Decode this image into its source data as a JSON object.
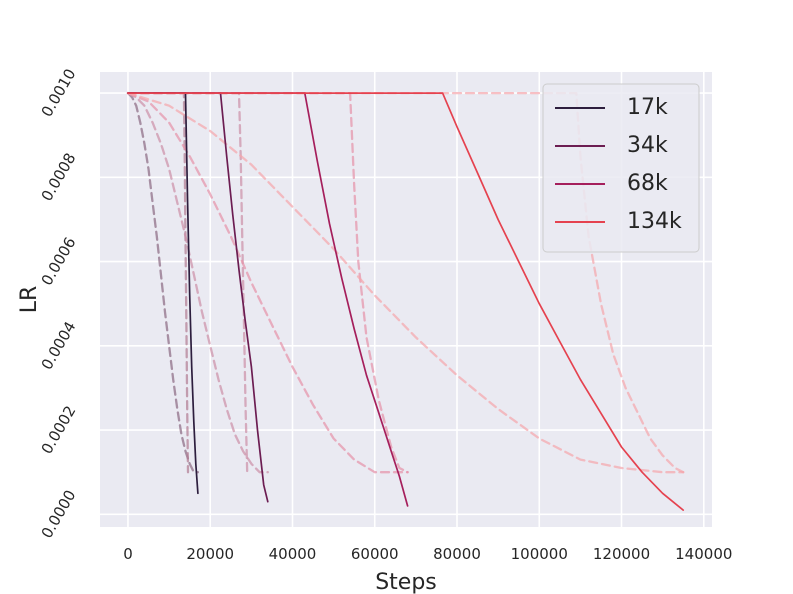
{
  "chart_data": {
    "type": "line",
    "xlabel": "Steps",
    "ylabel": "LR",
    "xlim": [
      -6800,
      142000
    ],
    "ylim": [
      -3e-05,
      0.00105
    ],
    "xticks": [
      {
        "value": 0,
        "label": "0"
      },
      {
        "value": 20000,
        "label": "20000"
      },
      {
        "value": 40000,
        "label": "40000"
      },
      {
        "value": 60000,
        "label": "60000"
      },
      {
        "value": 80000,
        "label": "80000"
      },
      {
        "value": 100000,
        "label": "100000"
      },
      {
        "value": 120000,
        "label": "120000"
      },
      {
        "value": 140000,
        "label": "140000"
      }
    ],
    "yticks": [
      {
        "value": 0.0,
        "label": "0.0000"
      },
      {
        "value": 0.0002,
        "label": "0.0002"
      },
      {
        "value": 0.0004,
        "label": "0.0004"
      },
      {
        "value": 0.0006,
        "label": "0.0006"
      },
      {
        "value": 0.0008,
        "label": "0.0008"
      },
      {
        "value": 0.001,
        "label": "0.0010"
      }
    ],
    "grid": true,
    "legend_position": "top-right",
    "background": "#eaeaf2",
    "series": [
      {
        "name": "17k",
        "style": "solid",
        "color": "#2d1e3e",
        "x": [
          0,
          14000,
          14500,
          15000,
          15500,
          16000,
          16500,
          17000
        ],
        "y": [
          0.001,
          0.001,
          0.00074,
          0.00052,
          0.00035,
          0.00022,
          0.00012,
          5e-05
        ]
      },
      {
        "name": "34k",
        "style": "solid",
        "color": "#6c1d52",
        "x": [
          0,
          22500,
          24000,
          25500,
          27000,
          28500,
          30000,
          31500,
          33000,
          34000
        ],
        "y": [
          0.001,
          0.001,
          0.00085,
          0.00071,
          0.00058,
          0.00046,
          0.00035,
          0.0002,
          7e-05,
          3e-05
        ]
      },
      {
        "name": "68k",
        "style": "solid",
        "color": "#a51f5c",
        "x": [
          0,
          43000,
          46000,
          49000,
          52000,
          55000,
          58000,
          61000,
          64000,
          66000,
          68000
        ],
        "y": [
          0.001,
          0.001,
          0.00084,
          0.00069,
          0.00056,
          0.00044,
          0.00033,
          0.00024,
          0.00015,
          9e-05,
          2e-05
        ]
      },
      {
        "name": "134k",
        "style": "solid",
        "color": "#e5424f",
        "x": [
          0,
          76500,
          80000,
          85000,
          90000,
          95000,
          100000,
          105000,
          110000,
          115000,
          120000,
          125000,
          130000,
          135000
        ],
        "y": [
          0.001,
          0.001,
          0.00092,
          0.00081,
          0.0007,
          0.0006,
          0.0005,
          0.00041,
          0.00032,
          0.00024,
          0.00016,
          0.0001,
          5e-05,
          1e-05
        ]
      },
      {
        "style": "dashed",
        "color": "#8a6882",
        "x": [
          0,
          1000,
          2000,
          3000,
          4000,
          5000,
          6000,
          7000,
          8000,
          9000,
          10000,
          11000,
          12000,
          13000,
          14000,
          15000,
          16000,
          17000
        ],
        "y": [
          0.001,
          0.00099,
          0.00097,
          0.00093,
          0.00088,
          0.00082,
          0.00074,
          0.00066,
          0.00057,
          0.00048,
          0.0004,
          0.00032,
          0.00025,
          0.00019,
          0.00015,
          0.00012,
          0.0001,
          0.0001
        ]
      },
      {
        "style": "dashed",
        "color": "#b07a92",
        "x": [
          0,
          13600,
          13800,
          14000,
          14200,
          14400,
          14600
        ],
        "y": [
          0.001,
          0.001,
          0.00085,
          0.00065,
          0.00045,
          0.00025,
          0.0001
        ]
      },
      {
        "style": "dashed",
        "color": "#cc8ea6",
        "x": [
          0,
          2000,
          4000,
          6000,
          8000,
          10000,
          12000,
          14000,
          16000,
          18000,
          20000,
          22000,
          24000,
          26000,
          28000,
          30000,
          32000,
          34000
        ],
        "y": [
          0.001,
          0.00099,
          0.00097,
          0.00093,
          0.00088,
          0.00082,
          0.00074,
          0.00066,
          0.00057,
          0.00048,
          0.0004,
          0.00032,
          0.00025,
          0.00019,
          0.00015,
          0.00012,
          0.0001,
          0.0001
        ]
      },
      {
        "style": "dashed",
        "color": "#cc8ea6",
        "x": [
          0,
          27000,
          27400,
          27800,
          28200,
          28600,
          29000
        ],
        "y": [
          0.001,
          0.001,
          0.00085,
          0.00065,
          0.00045,
          0.00025,
          0.0001
        ]
      },
      {
        "style": "dashed",
        "color": "#e691a8",
        "x": [
          0,
          5000,
          10000,
          15000,
          20000,
          25000,
          30000,
          35000,
          40000,
          45000,
          50000,
          55000,
          60000,
          65000,
          68000
        ],
        "y": [
          0.001,
          0.00098,
          0.00093,
          0.00085,
          0.00076,
          0.00066,
          0.00055,
          0.00045,
          0.00035,
          0.00026,
          0.00018,
          0.00013,
          0.0001,
          0.0001,
          0.0001
        ]
      },
      {
        "style": "dashed",
        "color": "#e691a8",
        "x": [
          0,
          54000,
          55000,
          56000,
          58000,
          61000,
          64000,
          66000,
          68000
        ],
        "y": [
          0.001,
          0.001,
          0.00078,
          0.0006,
          0.00042,
          0.00027,
          0.00016,
          0.00011,
          0.0001
        ]
      },
      {
        "style": "dashed",
        "color": "#f5a5ab",
        "x": [
          0,
          10000,
          20000,
          30000,
          40000,
          50000,
          60000,
          70000,
          80000,
          90000,
          100000,
          110000,
          120000,
          130000,
          135000
        ],
        "y": [
          0.001,
          0.00097,
          0.00091,
          0.00083,
          0.00073,
          0.00063,
          0.00052,
          0.00042,
          0.00033,
          0.00025,
          0.00018,
          0.00013,
          0.00011,
          0.0001,
          0.0001
        ]
      },
      {
        "style": "dashed",
        "color": "#f5a5ab",
        "x": [
          0,
          109000,
          110000,
          112000,
          115000,
          118000,
          121000,
          124000,
          127000,
          130000,
          133000,
          135000
        ],
        "y": [
          0.001,
          0.001,
          0.00085,
          0.00066,
          0.0005,
          0.00038,
          0.0003,
          0.00024,
          0.00018,
          0.00014,
          0.00011,
          0.0001
        ]
      }
    ]
  }
}
